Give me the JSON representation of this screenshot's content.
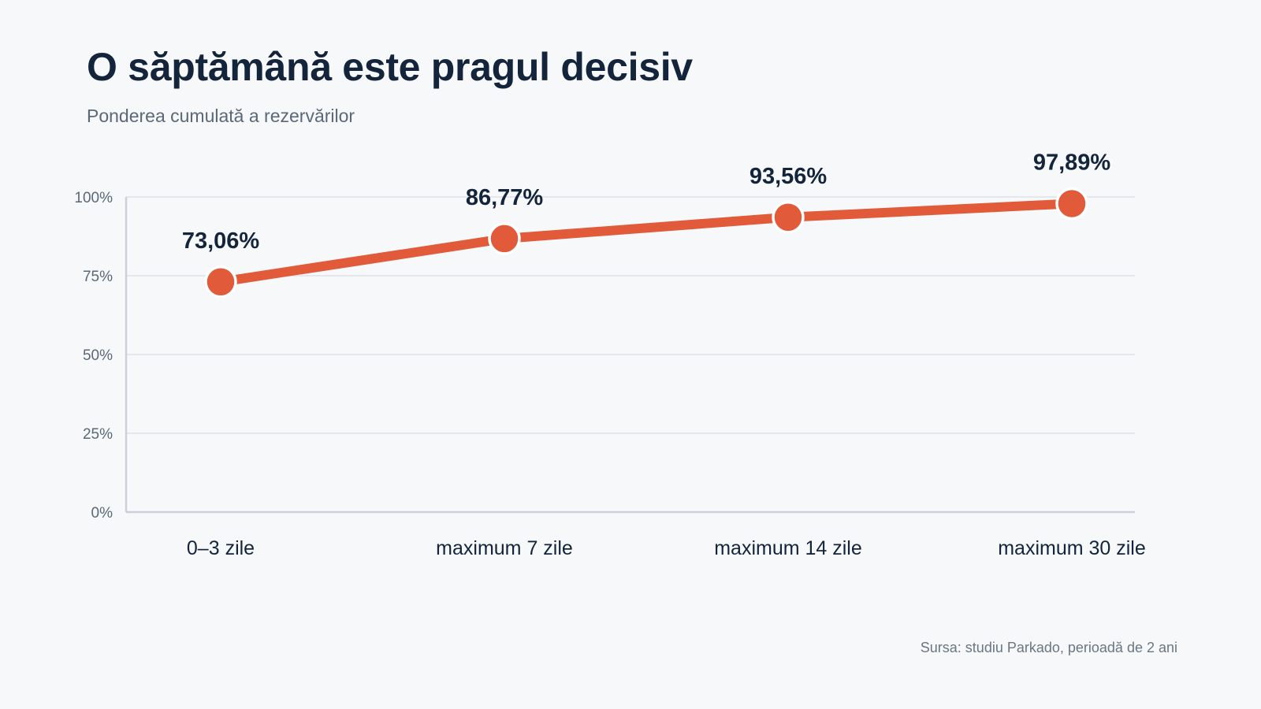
{
  "title": "O săptămână este pragul decisiv",
  "subtitle": "Ponderea cumulată a rezervărilor",
  "source": "Sursa: studiu Parkado, perioadă de 2 ani",
  "colors": {
    "accent": "#e15b3a",
    "title": "#13243b",
    "grid": "#dde2e8",
    "axis": "#c9d0d9",
    "tick": "#5a6878"
  },
  "chart_data": {
    "type": "line",
    "categories": [
      "0–3 zile",
      "maximum 7 zile",
      "maximum 14 zile",
      "maximum 30 zile"
    ],
    "series": [
      {
        "values": [
          73.06,
          86.77,
          93.56,
          97.89
        ],
        "labels": [
          "73,06%",
          "86,77%",
          "93,56%",
          "97,89%"
        ]
      }
    ],
    "yticks": [
      0,
      25,
      50,
      75,
      100
    ],
    "ytick_labels": [
      "0%",
      "25%",
      "50%",
      "75%",
      "100%"
    ],
    "ylim": [
      0,
      100
    ],
    "grid": true,
    "legend": "none"
  }
}
